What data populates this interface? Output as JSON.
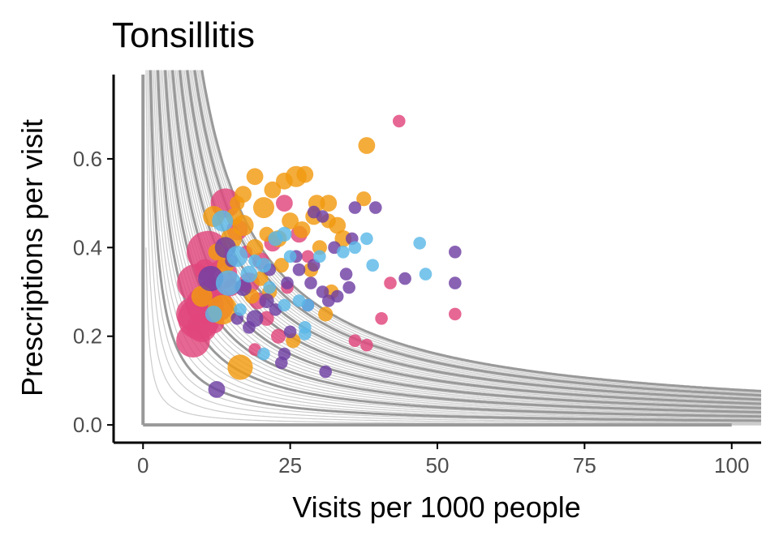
{
  "chart_data": {
    "type": "scatter",
    "title": "Tonsillitis",
    "xlabel": "Visits per 1000 people",
    "ylabel": "Prescriptions per visit",
    "xlim": [
      -5,
      105
    ],
    "ylim": [
      -0.04,
      0.79
    ],
    "x_ticks": [
      0,
      25,
      50,
      75,
      100
    ],
    "x_tick_labels": [
      "0",
      "25",
      "50",
      "75",
      "100"
    ],
    "y_ticks": [
      0.0,
      0.2,
      0.4,
      0.6
    ],
    "y_tick_labels": [
      "0.0",
      "0.2",
      "0.4",
      "0.6"
    ],
    "grid": false,
    "legend": "none",
    "reference_lines": {
      "x_from": 0,
      "x_to": 100,
      "y": 0,
      "x": 0,
      "y_to": 0.79
    },
    "isolines": {
      "minor_levels": [
        2,
        4,
        6,
        8,
        12,
        14,
        16,
        18,
        22,
        24,
        26,
        28,
        32,
        34,
        36,
        38,
        42,
        44,
        46,
        48,
        52,
        54,
        56,
        58,
        62,
        64,
        66,
        68,
        72,
        74,
        76,
        78
      ],
      "major_levels": [
        10,
        20,
        30,
        40,
        50,
        60,
        70,
        80
      ]
    },
    "series": [
      {
        "color": "#E0457B",
        "points": [
          [
            9.5,
            0.24,
            10
          ],
          [
            10.5,
            0.27,
            9
          ],
          [
            8.5,
            0.25,
            8
          ],
          [
            9.0,
            0.32,
            9
          ],
          [
            11.0,
            0.39,
            10
          ],
          [
            12.5,
            0.27,
            8
          ],
          [
            8.5,
            0.19,
            8
          ],
          [
            14.0,
            0.5,
            7
          ],
          [
            10.0,
            0.22,
            7
          ],
          [
            13.5,
            0.34,
            7
          ],
          [
            11.5,
            0.3,
            6
          ],
          [
            16.0,
            0.44,
            5
          ],
          [
            18.0,
            0.32,
            5
          ],
          [
            20.0,
            0.37,
            4
          ],
          [
            22.0,
            0.41,
            4
          ],
          [
            24.0,
            0.5,
            4
          ],
          [
            26.5,
            0.43,
            4
          ],
          [
            19.5,
            0.28,
            4
          ],
          [
            23.0,
            0.2,
            3.5
          ],
          [
            21.0,
            0.24,
            3.5
          ],
          [
            24.5,
            0.31,
            3
          ],
          [
            17.5,
            0.39,
            3
          ],
          [
            28.0,
            0.38,
            3
          ],
          [
            15.0,
            0.31,
            4
          ],
          [
            19.0,
            0.17,
            3
          ],
          [
            43.5,
            0.685,
            3
          ],
          [
            42.0,
            0.32,
            3
          ],
          [
            40.5,
            0.24,
            3
          ],
          [
            36.0,
            0.19,
            3
          ],
          [
            38.0,
            0.18,
            3
          ],
          [
            53.0,
            0.25,
            3
          ],
          [
            12.0,
            0.23,
            5
          ],
          [
            10.5,
            0.35,
            5
          ]
        ]
      },
      {
        "color": "#F29A10",
        "points": [
          [
            16.5,
            0.13,
            6
          ],
          [
            13.5,
            0.26,
            7
          ],
          [
            10.0,
            0.29,
            5
          ],
          [
            12.0,
            0.47,
            5
          ],
          [
            15.0,
            0.42,
            5
          ],
          [
            17.0,
            0.45,
            5
          ],
          [
            19.0,
            0.4,
            4
          ],
          [
            20.5,
            0.49,
            5
          ],
          [
            22.0,
            0.53,
            4
          ],
          [
            24.0,
            0.55,
            4
          ],
          [
            26.0,
            0.56,
            5
          ],
          [
            27.5,
            0.565,
            4
          ],
          [
            19.0,
            0.56,
            4
          ],
          [
            23.0,
            0.42,
            4
          ],
          [
            25.0,
            0.46,
            4
          ],
          [
            27.0,
            0.44,
            4
          ],
          [
            29.0,
            0.47,
            4
          ],
          [
            29.5,
            0.5,
            4
          ],
          [
            31.5,
            0.5,
            4
          ],
          [
            33.0,
            0.45,
            4
          ],
          [
            34.0,
            0.42,
            4
          ],
          [
            38.0,
            0.63,
            4
          ],
          [
            37.5,
            0.51,
            3.5
          ],
          [
            31.5,
            0.46,
            3.5
          ],
          [
            17.0,
            0.52,
            4
          ],
          [
            14.0,
            0.36,
            4
          ],
          [
            20.0,
            0.33,
            3.5
          ],
          [
            21.5,
            0.3,
            3.5
          ],
          [
            25.5,
            0.19,
            3.5
          ],
          [
            31.0,
            0.25,
            3.5
          ],
          [
            32.0,
            0.3,
            3.5
          ],
          [
            21.0,
            0.43,
            3.5
          ],
          [
            18.5,
            0.29,
            3.5
          ],
          [
            16.0,
            0.5,
            3.5
          ],
          [
            23.5,
            0.36,
            3.5
          ],
          [
            28.5,
            0.35,
            3.5
          ],
          [
            30.0,
            0.4,
            3.5
          ],
          [
            12.5,
            0.39,
            4
          ],
          [
            15.5,
            0.47,
            4
          ]
        ]
      },
      {
        "color": "#6F3FA3",
        "points": [
          [
            12.5,
            0.08,
            4
          ],
          [
            11.5,
            0.33,
            6
          ],
          [
            14.0,
            0.4,
            5
          ],
          [
            17.0,
            0.31,
            4
          ],
          [
            19.0,
            0.24,
            4
          ],
          [
            21.0,
            0.28,
            3.5
          ],
          [
            22.5,
            0.26,
            3
          ],
          [
            23.5,
            0.14,
            3
          ],
          [
            24.0,
            0.16,
            3
          ],
          [
            26.5,
            0.35,
            3
          ],
          [
            28.5,
            0.32,
            3
          ],
          [
            31.0,
            0.12,
            3
          ],
          [
            29.0,
            0.36,
            3
          ],
          [
            30.5,
            0.3,
            3
          ],
          [
            33.0,
            0.29,
            3
          ],
          [
            34.5,
            0.34,
            3
          ],
          [
            35.0,
            0.31,
            3
          ],
          [
            35.5,
            0.42,
            3
          ],
          [
            36.0,
            0.49,
            3
          ],
          [
            39.5,
            0.49,
            3
          ],
          [
            44.5,
            0.33,
            3
          ],
          [
            53.0,
            0.39,
            3
          ],
          [
            53.0,
            0.32,
            3
          ],
          [
            29.0,
            0.48,
            3
          ],
          [
            30.5,
            0.47,
            3
          ],
          [
            28.0,
            0.27,
            3
          ],
          [
            25.0,
            0.21,
            3
          ],
          [
            18.0,
            0.22,
            3
          ],
          [
            15.0,
            0.37,
            3
          ],
          [
            26.0,
            0.38,
            3
          ],
          [
            24.5,
            0.32,
            3
          ],
          [
            21.5,
            0.35,
            3
          ],
          [
            16.0,
            0.24,
            3
          ],
          [
            32.5,
            0.4,
            3
          ],
          [
            31.5,
            0.28,
            3
          ]
        ]
      },
      {
        "color": "#5BB8E8",
        "points": [
          [
            13.5,
            0.46,
            5
          ],
          [
            14.5,
            0.32,
            6
          ],
          [
            16.0,
            0.38,
            5
          ],
          [
            12.0,
            0.25,
            4
          ],
          [
            18.0,
            0.34,
            4
          ],
          [
            20.5,
            0.36,
            3.5
          ],
          [
            22.5,
            0.42,
            3.5
          ],
          [
            24.0,
            0.43,
            3.5
          ],
          [
            24.0,
            0.27,
            3
          ],
          [
            26.5,
            0.28,
            3
          ],
          [
            27.5,
            0.22,
            3
          ],
          [
            28.0,
            0.27,
            3
          ],
          [
            27.5,
            0.205,
            3
          ],
          [
            20.5,
            0.16,
            3
          ],
          [
            19.0,
            0.37,
            3
          ],
          [
            34.0,
            0.39,
            3
          ],
          [
            36.0,
            0.4,
            3
          ],
          [
            38.0,
            0.42,
            3
          ],
          [
            39.0,
            0.36,
            3
          ],
          [
            47.0,
            0.41,
            3
          ],
          [
            48.0,
            0.34,
            3
          ],
          [
            30.0,
            0.38,
            3
          ],
          [
            21.5,
            0.31,
            3
          ],
          [
            16.5,
            0.26,
            3
          ],
          [
            25.0,
            0.38,
            3
          ]
        ]
      }
    ]
  }
}
